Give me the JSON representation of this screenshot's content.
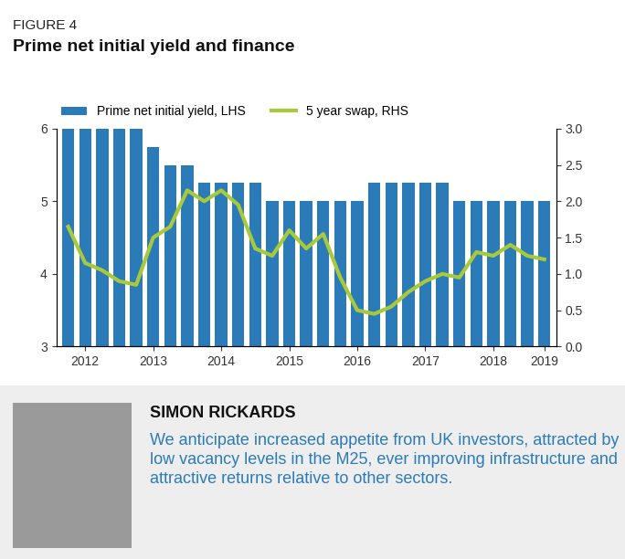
{
  "chart_data": {
    "type": "bar",
    "subtitle": "FIGURE 4",
    "title": "Prime net initial yield and finance",
    "annotations": [
      "SIMON RICKARDS",
      "We anticipate increased appetite from UK investors, attracted by low vacancy levels in the M25, ever improving infrastructure and attractive returns relative to other sectors."
    ],
    "categories": [
      null,
      "2012",
      null,
      null,
      null,
      "2013",
      null,
      null,
      null,
      "2014",
      null,
      null,
      null,
      "2015",
      null,
      null,
      null,
      "2016",
      null,
      null,
      null,
      "2017",
      null,
      null,
      null,
      "2018",
      null,
      null,
      "2019"
    ],
    "series": [
      {
        "name": "Prime net initial yield, LHS",
        "type": "bar",
        "color": "#2b7bb9",
        "values": [
          6,
          6,
          6,
          6,
          6,
          5.75,
          5.5,
          5.5,
          5.25,
          5.25,
          5.25,
          5.25,
          5,
          5,
          5,
          5,
          5,
          5,
          5.25,
          5.25,
          5.25,
          5.25,
          5.25,
          5,
          5,
          5,
          5,
          5,
          5
        ]
      },
      {
        "name": "5 year swap, RHS",
        "type": "line",
        "color": "#a8c93a",
        "axis": "y2",
        "values": [
          1.65,
          1.15,
          1.05,
          0.9,
          0.85,
          1.5,
          1.65,
          2.15,
          2.0,
          2.15,
          1.95,
          1.35,
          1.25,
          1.6,
          1.35,
          1.55,
          0.95,
          0.5,
          0.45,
          0.55,
          0.75,
          0.9,
          1.0,
          0.95,
          1.3,
          1.25,
          1.4,
          1.25,
          1.2
        ]
      }
    ],
    "ylim": [
      3,
      6
    ],
    "yticks": [
      3,
      4,
      5,
      6
    ],
    "y2lim": [
      0,
      3
    ],
    "y2ticks": [
      {
        "value": 0,
        "label": "0.0"
      },
      {
        "value": 0.5,
        "label": "0.5"
      },
      {
        "value": 1,
        "label": "1.0"
      },
      {
        "value": 1.5,
        "label": "1.5"
      },
      {
        "value": 2,
        "label": "2.0"
      },
      {
        "value": 2.5,
        "label": "2.5"
      },
      {
        "value": 3,
        "label": "3.0"
      }
    ],
    "legend": "upper left",
    "grid": false
  }
}
